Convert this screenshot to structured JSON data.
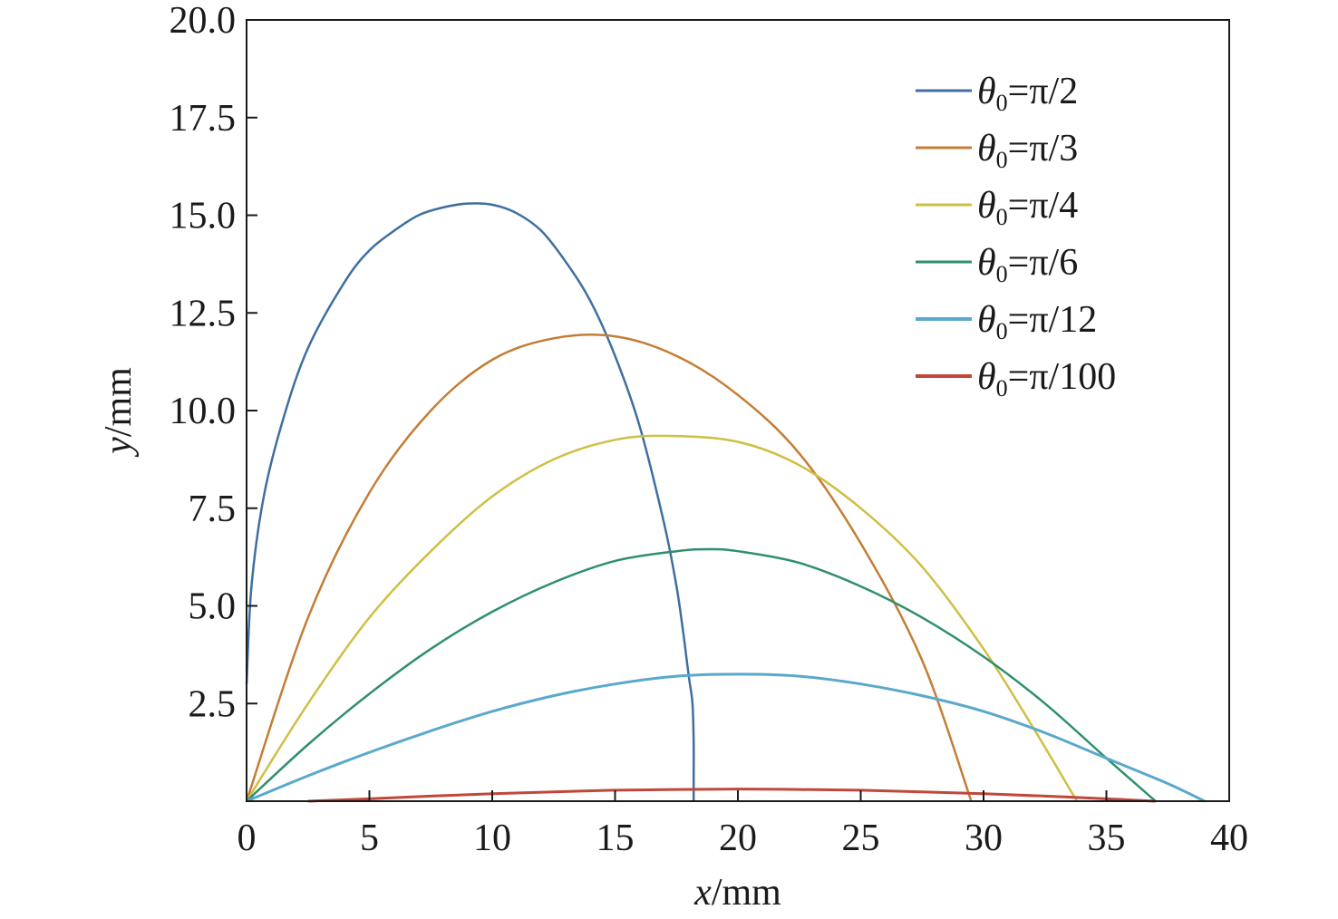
{
  "chart_data": {
    "type": "line",
    "title": "",
    "xlabel": {
      "var": "x",
      "unit": "/mm"
    },
    "ylabel": {
      "var": "y",
      "unit": "/mm"
    },
    "xlim": [
      0,
      40
    ],
    "ylim": [
      0,
      20
    ],
    "x_ticks": [
      0,
      5,
      10,
      15,
      20,
      25,
      30,
      35,
      40
    ],
    "x_tick_labels": [
      "0",
      "5",
      "10",
      "15",
      "20",
      "25",
      "30",
      "35",
      "40"
    ],
    "y_ticks": [
      2.5,
      5.0,
      7.5,
      10.0,
      12.5,
      15.0,
      17.5,
      20.0
    ],
    "y_tick_labels": [
      "2.5",
      "5.0",
      "7.5",
      "10.0",
      "12.5",
      "15.0",
      "17.5",
      "20.0"
    ],
    "grid": false,
    "legend_position": "top-right",
    "series": [
      {
        "name": "θ0=π/2",
        "legend": {
          "var": "θ",
          "sub": "0",
          "rest": "=π/2"
        },
        "color": "#3f6fa0",
        "x": [
          0,
          0.2,
          0.7,
          1.5,
          2.5,
          4,
          5,
          6,
          7,
          8,
          9,
          10,
          11,
          12,
          13,
          14,
          15,
          16,
          17,
          17.5,
          17.8,
          18.0,
          18.15,
          18.2,
          18.2,
          18.2
        ],
        "y": [
          3.0,
          5.5,
          7.8,
          9.8,
          11.6,
          13.3,
          14.1,
          14.6,
          15.0,
          15.2,
          15.3,
          15.27,
          15.05,
          14.6,
          13.8,
          12.8,
          11.4,
          9.6,
          7.1,
          5.5,
          4.2,
          3.2,
          2.5,
          1.5,
          0.5,
          0.0
        ]
      },
      {
        "name": "θ0=π/3",
        "legend": {
          "var": "θ",
          "sub": "0",
          "rest": "=π/3"
        },
        "color": "#c47d34",
        "x": [
          0,
          2.5,
          5,
          7.5,
          10,
          12.5,
          15,
          17.5,
          20,
          22.5,
          25,
          27.5,
          29.5
        ],
        "y": [
          0,
          4.7,
          7.9,
          10.0,
          11.3,
          11.85,
          11.9,
          11.4,
          10.4,
          8.9,
          6.6,
          3.6,
          0
        ]
      },
      {
        "name": "θ0=π/4",
        "legend": {
          "var": "θ",
          "sub": "0",
          "rest": "=π/4"
        },
        "color": "#cfbf45",
        "x": [
          0,
          2.5,
          5,
          7.5,
          10,
          12.5,
          15,
          17.2,
          20,
          22.5,
          25,
          27.5,
          30,
          32,
          33.8
        ],
        "y": [
          0,
          2.5,
          4.7,
          6.4,
          7.8,
          8.75,
          9.25,
          9.35,
          9.2,
          8.6,
          7.5,
          6.0,
          3.9,
          1.9,
          0
        ]
      },
      {
        "name": "θ0=π/6",
        "legend": {
          "var": "θ",
          "sub": "0",
          "rest": "=π/6"
        },
        "color": "#2f8f6e",
        "x": [
          0,
          2.5,
          5,
          7.5,
          10,
          12.5,
          15,
          17.5,
          18.8,
          20,
          22.5,
          25,
          27.5,
          30,
          32.5,
          35,
          37
        ],
        "y": [
          0,
          1.45,
          2.75,
          3.9,
          4.85,
          5.6,
          6.15,
          6.4,
          6.45,
          6.4,
          6.1,
          5.5,
          4.7,
          3.7,
          2.5,
          1.1,
          0
        ]
      },
      {
        "name": "θ0=π/12",
        "legend": {
          "var": "θ",
          "sub": "0",
          "rest": "=π/12"
        },
        "color": "#5aa8cc",
        "x": [
          0,
          2.5,
          5,
          7.5,
          10,
          12.5,
          15,
          17.5,
          20,
          22.5,
          25,
          27.5,
          30,
          32.5,
          35,
          37.5,
          39
        ],
        "y": [
          0,
          0.65,
          1.25,
          1.8,
          2.3,
          2.7,
          3.0,
          3.2,
          3.25,
          3.2,
          3.0,
          2.7,
          2.3,
          1.75,
          1.1,
          0.45,
          0
        ]
      },
      {
        "name": "θ0=π/100",
        "legend": {
          "var": "θ",
          "sub": "0",
          "rest": "=π/100"
        },
        "color": "#c0473a",
        "x": [
          2.5,
          5,
          7.5,
          10,
          12.5,
          15,
          17.5,
          20,
          22.5,
          25,
          27.5,
          30,
          32.5,
          35,
          37
        ],
        "y": [
          0,
          0.06,
          0.13,
          0.19,
          0.24,
          0.28,
          0.3,
          0.31,
          0.3,
          0.28,
          0.24,
          0.19,
          0.13,
          0.06,
          0
        ]
      }
    ]
  }
}
